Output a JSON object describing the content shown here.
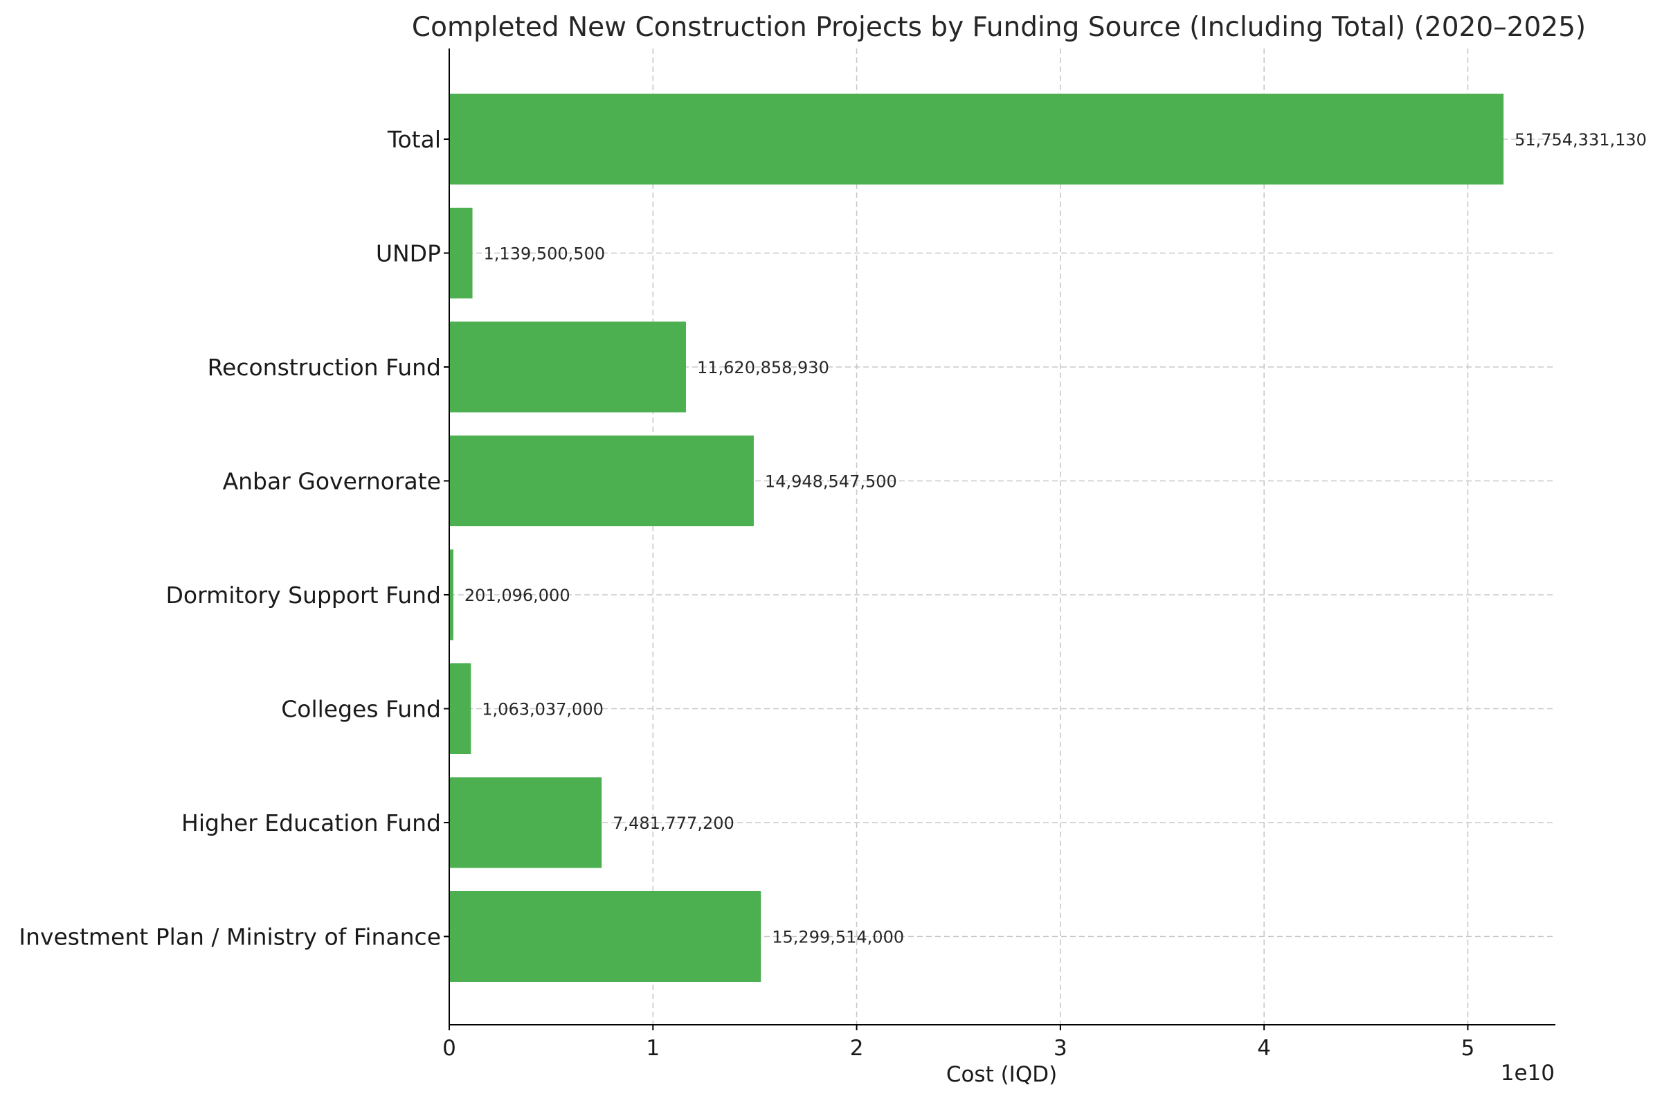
{
  "chart_data": {
    "type": "bar",
    "orientation": "horizontal",
    "title": "Completed New Construction Projects by Funding Source (Including Total) (2020–2025)",
    "xlabel": "Cost (IQD)",
    "ylabel": "",
    "x_scale_label": "1e10",
    "x_scale": 10000000000,
    "xlim": [
      0,
      54300000000
    ],
    "xticks": [
      0,
      1,
      2,
      3,
      4,
      5
    ],
    "grid": true,
    "bar_color": "#4caf50",
    "categories": [
      "Investment Plan / Ministry of Finance",
      "Higher Education Fund",
      "Colleges Fund",
      "Dormitory Support Fund",
      "Anbar Governorate",
      "Reconstruction Fund",
      "UNDP",
      "Total"
    ],
    "values": [
      15299514000,
      7481777200,
      1063037000,
      201096000,
      14948547500,
      11620858930,
      1139500500,
      51754331130
    ],
    "value_labels": [
      "15,299,514,000",
      "7,481,777,200",
      "1,063,037,000",
      "201,096,000",
      "14,948,547,500",
      "11,620,858,930",
      "1,139,500,500",
      "51,754,331,130"
    ]
  }
}
